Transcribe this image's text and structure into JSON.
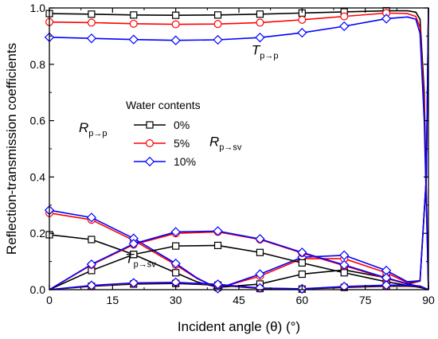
{
  "chart_data": {
    "type": "line",
    "xlabel": "Incident angle (θ) (°)",
    "ylabel": "Reflection-transmission coefficients",
    "xlim": [
      0,
      90
    ],
    "ylim": [
      0,
      1.0
    ],
    "xticks": [
      "0",
      "15",
      "30",
      "45",
      "60",
      "75",
      "90"
    ],
    "yticks": [
      "0.0",
      "0.2",
      "0.4",
      "0.6",
      "0.8",
      "1.0"
    ],
    "grid": false,
    "legend": {
      "title": "Water contents",
      "placement": "center-left",
      "entries": [
        "0%",
        "5%",
        "10%"
      ]
    },
    "annotations": [
      {
        "main": "T",
        "sub": "p→p",
        "x": 48,
        "y": 0.835
      },
      {
        "main": "R",
        "sub": "p→p",
        "x": 7,
        "y": 0.56
      },
      {
        "main": "R",
        "sub": "p→sv",
        "x": 38,
        "y": 0.51
      },
      {
        "main": "T",
        "sub": "p→sv",
        "x": 18,
        "y": 0.095
      }
    ],
    "series": [
      {
        "name": "0%",
        "quantity": "T_p→p",
        "color": "#000000",
        "marker": "square",
        "x": [
          0,
          10,
          20,
          30,
          40,
          50,
          60,
          70,
          80,
          85,
          87,
          88,
          89,
          90
        ],
        "y": [
          0.98,
          0.978,
          0.975,
          0.974,
          0.975,
          0.978,
          0.982,
          0.986,
          0.99,
          0.99,
          0.985,
          0.96,
          0.7,
          0.0
        ]
      },
      {
        "name": "5%",
        "quantity": "T_p→p",
        "color": "#ff0000",
        "marker": "circle",
        "x": [
          0,
          10,
          20,
          30,
          40,
          50,
          60,
          70,
          80,
          85,
          87,
          88,
          89,
          90
        ],
        "y": [
          0.95,
          0.948,
          0.944,
          0.942,
          0.943,
          0.948,
          0.958,
          0.97,
          0.982,
          0.98,
          0.97,
          0.93,
          0.65,
          0.0
        ]
      },
      {
        "name": "10%",
        "quantity": "T_p→p",
        "color": "#0000ff",
        "marker": "diamond",
        "x": [
          0,
          10,
          20,
          30,
          40,
          50,
          60,
          70,
          80,
          85,
          87,
          88,
          89,
          90
        ],
        "y": [
          0.896,
          0.892,
          0.888,
          0.885,
          0.887,
          0.895,
          0.912,
          0.935,
          0.962,
          0.968,
          0.96,
          0.91,
          0.6,
          0.0
        ]
      },
      {
        "name": "0%",
        "quantity": "R_p→p",
        "color": "#000000",
        "marker": "square",
        "x": [
          0,
          10,
          20,
          30,
          35,
          40,
          50,
          60,
          70,
          80,
          85,
          88,
          89.5,
          90
        ],
        "y": [
          0.195,
          0.178,
          0.125,
          0.06,
          0.028,
          0.008,
          0.02,
          0.055,
          0.07,
          0.042,
          0.02,
          0.03,
          0.4,
          1.0
        ]
      },
      {
        "name": "5%",
        "quantity": "R_p→p",
        "color": "#ff0000",
        "marker": "circle",
        "x": [
          0,
          10,
          20,
          30,
          35,
          40,
          50,
          60,
          70,
          80,
          85,
          88,
          89.5,
          90
        ],
        "y": [
          0.272,
          0.248,
          0.175,
          0.088,
          0.04,
          0.005,
          0.048,
          0.11,
          0.11,
          0.06,
          0.025,
          0.03,
          0.4,
          1.0
        ]
      },
      {
        "name": "10%",
        "quantity": "R_p→p",
        "color": "#0000ff",
        "marker": "diamond",
        "x": [
          0,
          10,
          20,
          30,
          35,
          40,
          50,
          60,
          70,
          80,
          85,
          88,
          89.5,
          90
        ],
        "y": [
          0.282,
          0.256,
          0.182,
          0.093,
          0.042,
          0.004,
          0.055,
          0.115,
          0.122,
          0.068,
          0.028,
          0.032,
          0.4,
          1.0
        ]
      },
      {
        "name": "0%",
        "quantity": "R_p→sv",
        "color": "#000000",
        "marker": "square",
        "x": [
          0,
          10,
          20,
          30,
          40,
          50,
          60,
          70,
          80,
          85,
          88,
          90
        ],
        "y": [
          0.0,
          0.068,
          0.125,
          0.155,
          0.157,
          0.132,
          0.095,
          0.06,
          0.028,
          0.015,
          0.008,
          0.0
        ]
      },
      {
        "name": "5%",
        "quantity": "R_p→sv",
        "color": "#ff0000",
        "marker": "circle",
        "x": [
          0,
          10,
          20,
          30,
          40,
          50,
          60,
          70,
          80,
          85,
          88,
          90
        ],
        "y": [
          0.0,
          0.088,
          0.16,
          0.2,
          0.205,
          0.178,
          0.13,
          0.085,
          0.04,
          0.02,
          0.01,
          0.0
        ]
      },
      {
        "name": "10%",
        "quantity": "R_p→sv",
        "color": "#0000ff",
        "marker": "diamond",
        "x": [
          0,
          10,
          20,
          30,
          40,
          50,
          60,
          70,
          80,
          85,
          88,
          90
        ],
        "y": [
          0.0,
          0.09,
          0.163,
          0.205,
          0.208,
          0.18,
          0.132,
          0.088,
          0.042,
          0.021,
          0.011,
          0.0
        ]
      },
      {
        "name": "0%",
        "quantity": "T_p→sv",
        "color": "#000000",
        "marker": "square",
        "x": [
          0,
          10,
          20,
          30,
          40,
          50,
          60,
          70,
          80,
          85,
          88,
          90
        ],
        "y": [
          0.0,
          0.012,
          0.02,
          0.022,
          0.016,
          0.004,
          0.002,
          0.008,
          0.012,
          0.012,
          0.01,
          0.0
        ]
      },
      {
        "name": "5%",
        "quantity": "T_p→sv",
        "color": "#ff0000",
        "marker": "circle",
        "x": [
          0,
          10,
          20,
          30,
          40,
          50,
          60,
          70,
          80,
          85,
          88,
          90
        ],
        "y": [
          0.0,
          0.014,
          0.023,
          0.025,
          0.018,
          0.005,
          0.003,
          0.01,
          0.015,
          0.015,
          0.012,
          0.0
        ]
      },
      {
        "name": "10%",
        "quantity": "T_p→sv",
        "color": "#0000ff",
        "marker": "diamond",
        "x": [
          0,
          10,
          20,
          30,
          40,
          50,
          60,
          70,
          80,
          85,
          88,
          90
        ],
        "y": [
          0.0,
          0.015,
          0.024,
          0.026,
          0.019,
          0.006,
          0.003,
          0.011,
          0.016,
          0.016,
          0.013,
          0.0
        ]
      }
    ]
  }
}
